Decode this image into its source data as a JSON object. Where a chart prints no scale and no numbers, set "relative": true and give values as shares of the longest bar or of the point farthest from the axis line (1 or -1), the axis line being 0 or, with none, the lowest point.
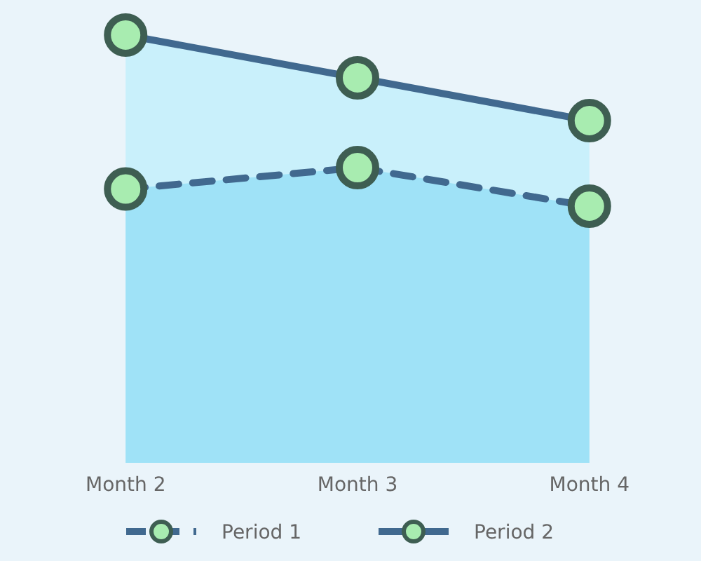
{
  "chart_data": {
    "type": "area",
    "relative": true,
    "categories": [
      "Month 2",
      "Month 3",
      "Month 4"
    ],
    "series": [
      {
        "name": "Period 1",
        "color": "#41698f",
        "values": [
          0.64,
          0.69,
          0.6
        ],
        "line_style": "dashed"
      },
      {
        "name": "Period 2",
        "color": "#41698f",
        "values": [
          1,
          0.9,
          0.8
        ],
        "line_style": "solid"
      }
    ],
    "marker": "circle",
    "legend": "bottom",
    "grid": false
  }
}
